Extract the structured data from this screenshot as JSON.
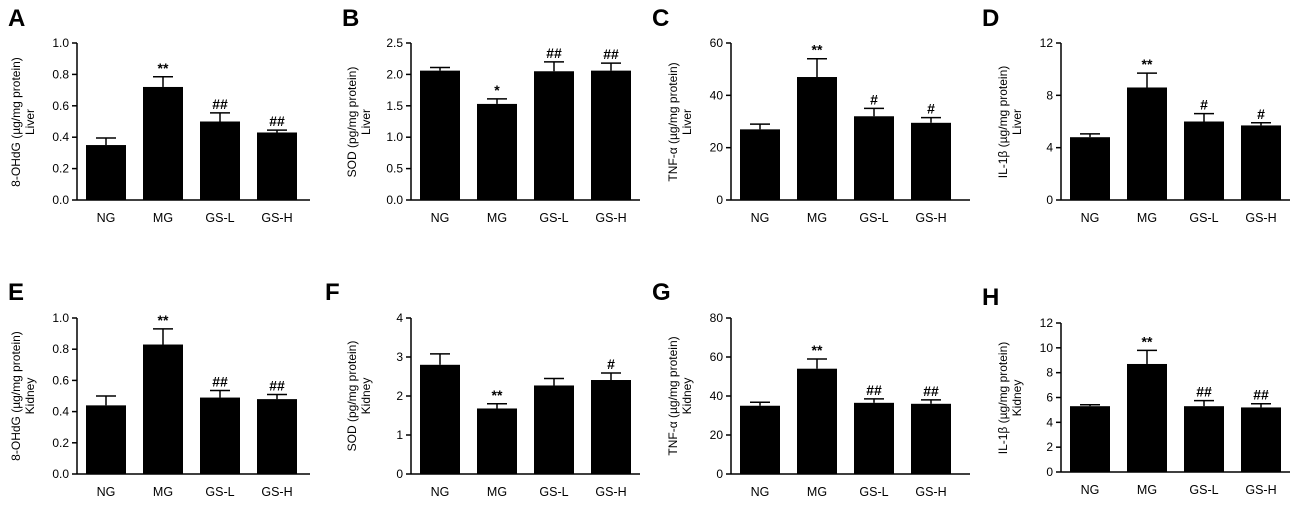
{
  "chart_data": [
    {
      "panel": "A",
      "type": "bar",
      "categories": [
        "NG",
        "MG",
        "GS-L",
        "GS-H"
      ],
      "values": [
        0.35,
        0.72,
        0.5,
        0.43
      ],
      "errors": [
        0.045,
        0.065,
        0.055,
        0.015
      ],
      "significance": [
        "",
        "**",
        "##",
        "##"
      ],
      "ylabel_lines": [
        "8-OHdG (µg/mg protein)",
        "Liver"
      ],
      "ylim": [
        0,
        1.0
      ],
      "yticks": [
        "0.0",
        "0.2",
        "0.4",
        "0.6",
        "0.8",
        "1.0"
      ]
    },
    {
      "panel": "B",
      "type": "bar",
      "categories": [
        "NG",
        "MG",
        "GS-L",
        "GS-H"
      ],
      "values": [
        2.06,
        1.53,
        2.05,
        2.06
      ],
      "errors": [
        0.05,
        0.08,
        0.15,
        0.12
      ],
      "significance": [
        "",
        "*",
        "##",
        "##"
      ],
      "ylabel_lines": [
        "SOD  (pg/mg protein)",
        "Liver"
      ],
      "ylim": [
        0,
        2.5
      ],
      "yticks": [
        "0.0",
        "0.5",
        "1.0",
        "1.5",
        "2.0",
        "2.5"
      ]
    },
    {
      "panel": "C",
      "type": "bar",
      "categories": [
        "NG",
        "MG",
        "GS-L",
        "GS-H"
      ],
      "values": [
        27,
        47,
        32,
        29.5
      ],
      "errors": [
        2.0,
        7.0,
        3.0,
        2.0
      ],
      "significance": [
        "",
        "**",
        "#",
        "#"
      ],
      "ylabel_lines": [
        "TNF-α  (µg/mg protein)",
        "Liver"
      ],
      "ylim": [
        0,
        60
      ],
      "yticks": [
        "0",
        "20",
        "40",
        "60"
      ]
    },
    {
      "panel": "D",
      "type": "bar",
      "categories": [
        "NG",
        "MG",
        "GS-L",
        "GS-H"
      ],
      "values": [
        4.8,
        8.6,
        6.0,
        5.7
      ],
      "errors": [
        0.25,
        1.1,
        0.6,
        0.2
      ],
      "significance": [
        "",
        "**",
        "#",
        "#"
      ],
      "ylabel_lines": [
        "IL-1β  (µg/mg protein)",
        "Liver"
      ],
      "ylim": [
        0,
        12
      ],
      "yticks": [
        "0",
        "4",
        "8",
        "12"
      ]
    },
    {
      "panel": "E",
      "type": "bar",
      "categories": [
        "NG",
        "MG",
        "GS-L",
        "GS-H"
      ],
      "values": [
        0.44,
        0.83,
        0.49,
        0.48
      ],
      "errors": [
        0.06,
        0.1,
        0.045,
        0.03
      ],
      "significance": [
        "",
        "**",
        "##",
        "##"
      ],
      "ylabel_lines": [
        "8-OHdG  (µg/mg protein)",
        "Kidney"
      ],
      "ylim": [
        0,
        1.0
      ],
      "yticks": [
        "0.0",
        "0.2",
        "0.4",
        "0.6",
        "0.8",
        "1.0"
      ]
    },
    {
      "panel": "F",
      "type": "bar",
      "categories": [
        "NG",
        "MG",
        "GS-L",
        "GS-H"
      ],
      "values": [
        2.8,
        1.68,
        2.27,
        2.41
      ],
      "errors": [
        0.28,
        0.12,
        0.18,
        0.18
      ],
      "significance": [
        "",
        "**",
        "",
        "#"
      ],
      "ylabel_lines": [
        "SOD  (pg/mg protein)",
        "Kidney"
      ],
      "ylim": [
        0,
        4
      ],
      "yticks": [
        "0",
        "1",
        "2",
        "3",
        "4"
      ]
    },
    {
      "panel": "G",
      "type": "bar",
      "categories": [
        "NG",
        "MG",
        "GS-L",
        "GS-H"
      ],
      "values": [
        35,
        54,
        36.5,
        36
      ],
      "errors": [
        1.8,
        5.0,
        2.0,
        2.0
      ],
      "significance": [
        "",
        "**",
        "##",
        "##"
      ],
      "ylabel_lines": [
        "TNF-α  (µg/mg protein)",
        "Kidney"
      ],
      "ylim": [
        0,
        80
      ],
      "yticks": [
        "0",
        "20",
        "40",
        "60",
        "80"
      ]
    },
    {
      "panel": "H",
      "type": "bar",
      "categories": [
        "NG",
        "MG",
        "GS-L",
        "GS-H"
      ],
      "values": [
        5.3,
        8.7,
        5.3,
        5.2
      ],
      "errors": [
        0.12,
        1.1,
        0.45,
        0.3
      ],
      "significance": [
        "",
        "**",
        "##",
        "##"
      ],
      "ylabel_lines": [
        "IL-1β  (µg/mg protein)",
        "Kidney"
      ],
      "ylim": [
        0,
        12
      ],
      "yticks": [
        "0",
        "2",
        "4",
        "6",
        "8",
        "10",
        "12"
      ]
    }
  ],
  "colors": {
    "bar": "#000000",
    "axis": "#000000",
    "background": "#ffffff"
  }
}
